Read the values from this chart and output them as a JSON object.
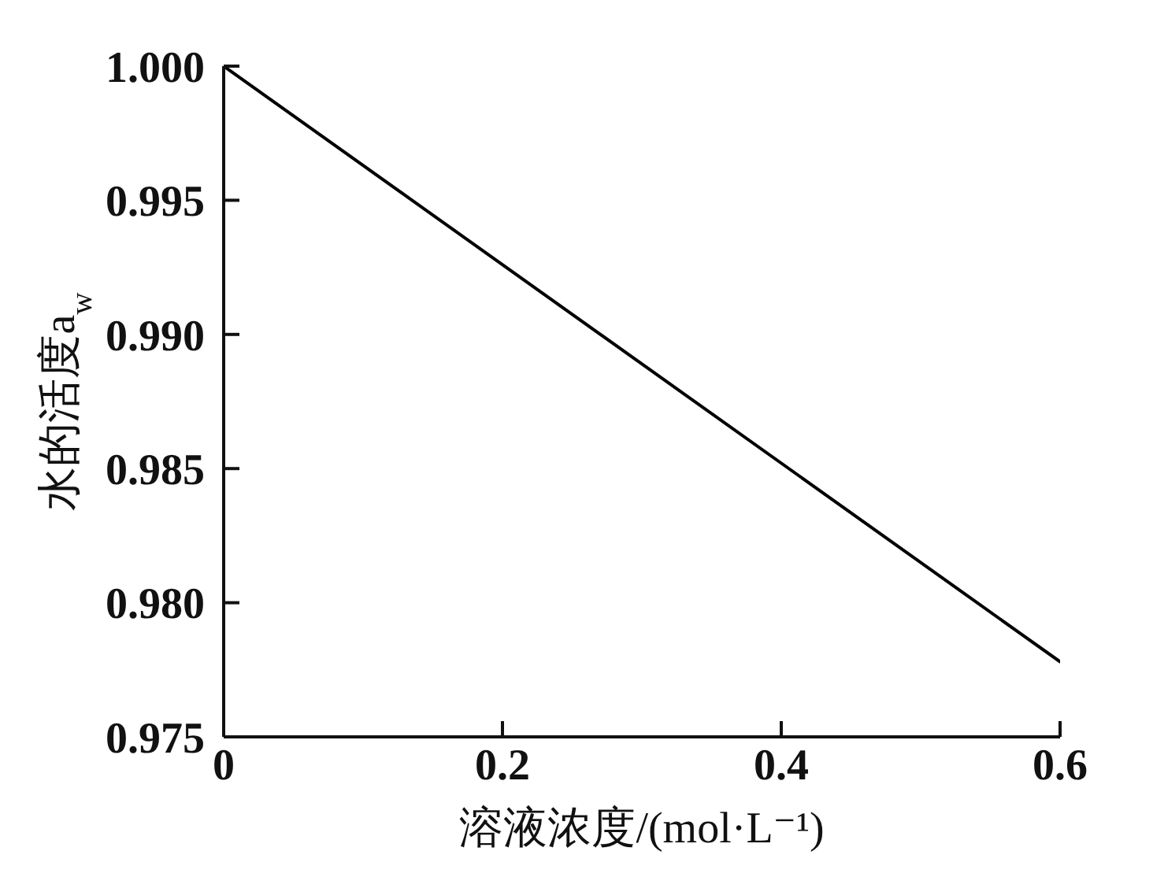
{
  "chart_data": {
    "type": "line",
    "xlabel": "溶液浓度/(mol·L⁻¹)",
    "ylabel": "水的活度a$_{w}$",
    "x": [
      0,
      0.6
    ],
    "values": [
      1.0,
      0.9778
    ],
    "color": "#000000",
    "xlim": [
      0,
      0.6
    ],
    "xticks": [
      0,
      0.2,
      0.4,
      0.6
    ],
    "ylim": [
      0.975,
      1.0
    ],
    "yticks": [
      0.975,
      {
        "value": 0.98,
        "label": "0.980"
      },
      0.985,
      {
        "value": 0.99,
        "label": "0.990"
      },
      0.995,
      {
        "value": 1.0,
        "label": "1.000"
      }
    ],
    "marker": "none",
    "line_style": "solid"
  }
}
